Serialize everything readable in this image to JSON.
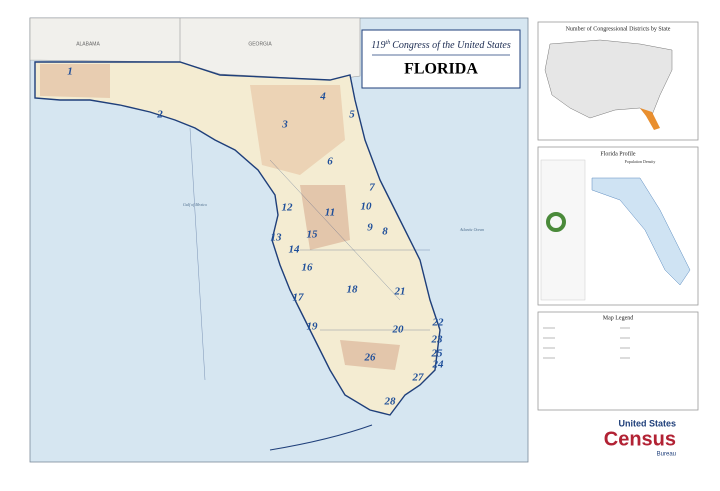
{
  "header": {
    "congress_number": "119",
    "congress_suffix": "th",
    "congress_text": "Congress of the United States",
    "state": "FLORIDA"
  },
  "map": {
    "neighbors": [
      "ALABAMA",
      "GEORGIA"
    ],
    "water": [
      "Gulf of Mexico",
      "Atlantic Ocean"
    ],
    "districts": [
      "1",
      "2",
      "3",
      "4",
      "5",
      "6",
      "7",
      "8",
      "9",
      "10",
      "11",
      "12",
      "13",
      "14",
      "15",
      "16",
      "17",
      "18",
      "19",
      "20",
      "21",
      "22",
      "23",
      "24",
      "25",
      "26",
      "27",
      "28"
    ]
  },
  "panels": {
    "districts_by_state": "Number of Congressional Districts by State",
    "profile": "Florida Profile",
    "profile_map": "Population Density",
    "legend": "Map Legend"
  },
  "logo": {
    "line1": "United States",
    "line2": "Census",
    "line3": "Bureau"
  }
}
